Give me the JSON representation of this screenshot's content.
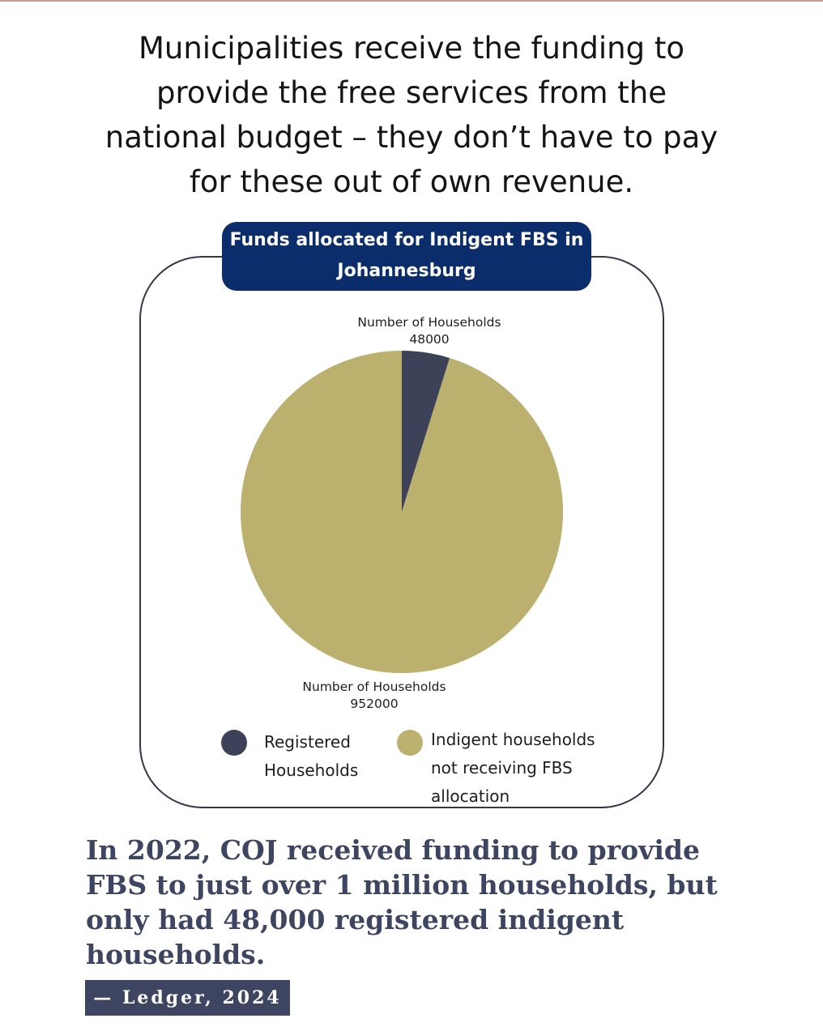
{
  "headline": {
    "lines": [
      "Municipalities receive the funding to",
      "provide the free services from the",
      "national budget – they don’t have to pay",
      "for these out of own revenue."
    ]
  },
  "chart_data": {
    "type": "pie",
    "title_lines": [
      "Funds allocated for Indigent FBS in",
      "Johannesburg"
    ],
    "slices": [
      {
        "label": "Registered Households",
        "legend_lines": [
          "Registered",
          "Households"
        ],
        "value_label": "Number of Households",
        "value": 48000,
        "color": "#3d4258"
      },
      {
        "label": "Indigent households not receiving FBS allocation",
        "legend_lines": [
          "Indigent households",
          "not receiving FBS",
          "allocation"
        ],
        "value_label": "Number of Households",
        "value": 952000,
        "color": "#bbb06e"
      }
    ],
    "legend_position": "bottom"
  },
  "quote": {
    "lines": [
      "In 2022, COJ received funding to provide",
      "FBS to just over 1 million households, but",
      "only had 48,000 registered indigent",
      "households."
    ]
  },
  "source": {
    "label": "— Ledger, 2024"
  },
  "colors": {
    "title_bg": "#0c2d6b",
    "quote_text": "#3d4560",
    "frame_border": "#33374a"
  }
}
